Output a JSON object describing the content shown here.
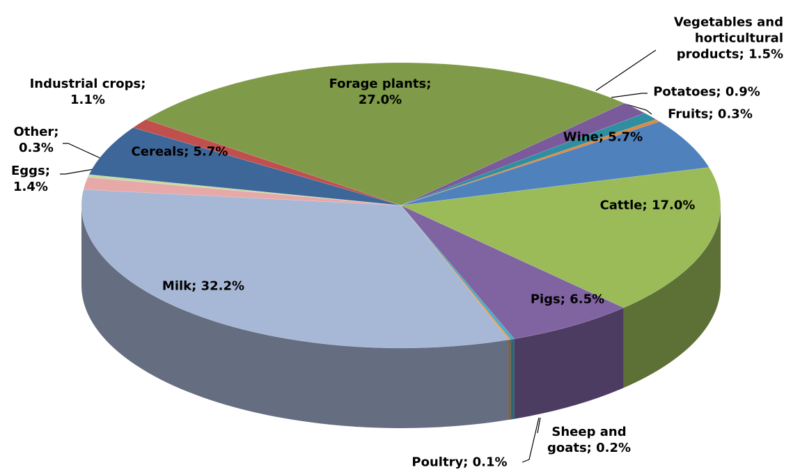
{
  "chart_data": {
    "type": "pie3d",
    "values": [
      27.0,
      1.5,
      0.9,
      0.3,
      5.7,
      17.0,
      6.5,
      0.2,
      0.1,
      32.2,
      1.4,
      0.3,
      5.7,
      1.1
    ],
    "value_labels": [
      "Forage plants; 27.0%",
      "Vegetables and horticultural products; 1.5%",
      "Potatoes; 0.9%",
      "Fruits; 0.3%",
      "Wine; 5.7%",
      "Cattle; 17.0%",
      "Pigs; 6.5%",
      "Sheep and goats; 0.2%",
      "Poultry; 0.1%",
      "Milk; 32.2%",
      "Eggs; 1.4%",
      "Other; 0.3%",
      "Cereals; 5.7%",
      "Industrial crops; 1.1%"
    ],
    "colors": [
      "#7f9a48",
      "#7a5a9a",
      "#2f8ea0",
      "#e0883a",
      "#4f81bd",
      "#9bbb59",
      "#8064a2",
      "#4bacc6",
      "#f79646",
      "#a7b7d6",
      "#e6a9a8",
      "#c4dca4",
      "#3d6699",
      "#c0504d"
    ]
  }
}
